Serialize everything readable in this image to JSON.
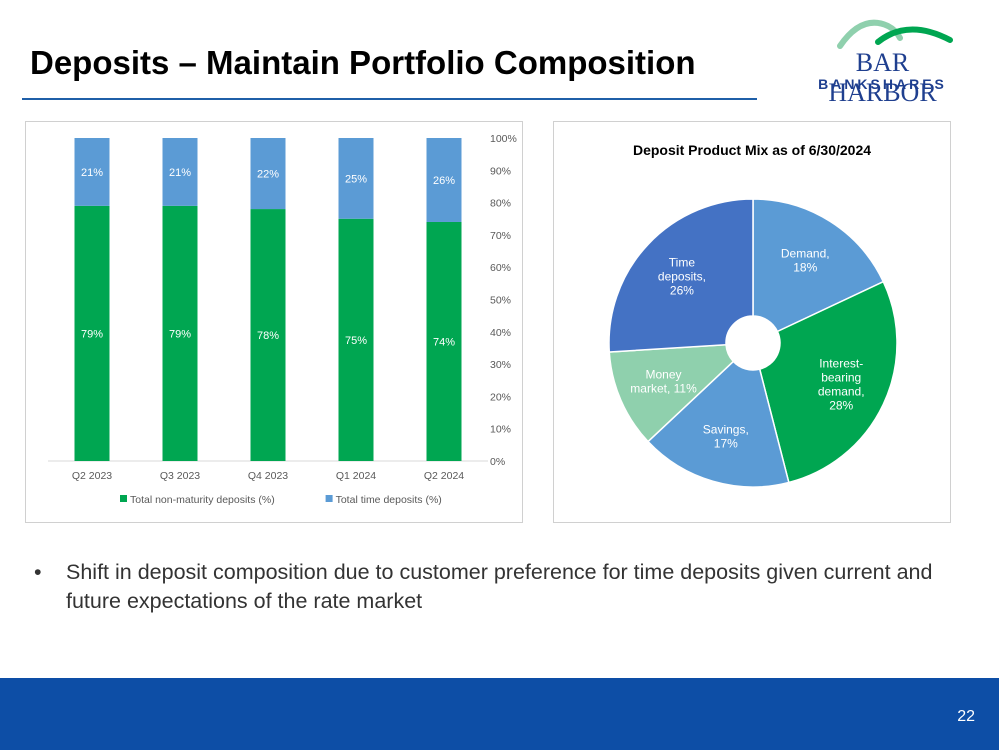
{
  "title": "Deposits – Maintain Portfolio Composition",
  "logo": {
    "line1": "BAR HARBOR",
    "line2": "BANKSHARES"
  },
  "bullet": "Shift in deposit composition due to customer preference for time deposits given current and future expectations of the rate market",
  "page_number": "22",
  "colors": {
    "green": "#00a651",
    "light_blue": "#5b9bd5",
    "mid_blue": "#4472c4",
    "mint": "#8fd0ad",
    "footer": "#0d4ea6"
  },
  "chart_data": [
    {
      "type": "bar",
      "stacked": true,
      "categories": [
        "Q2 2023",
        "Q3 2023",
        "Q4 2023",
        "Q1 2024",
        "Q2 2024"
      ],
      "series": [
        {
          "name": "Total non-maturity deposits (%)",
          "values": [
            79,
            79,
            78,
            75,
            74
          ],
          "labels": [
            "79%",
            "79%",
            "78%",
            "75%",
            "74%"
          ],
          "color": "#00a651"
        },
        {
          "name": "Total time deposits (%)",
          "values": [
            21,
            21,
            22,
            25,
            26
          ],
          "labels": [
            "21%",
            "21%",
            "22%",
            "25%",
            "26%"
          ],
          "color": "#5b9bd5"
        }
      ],
      "y_axis_side": "right",
      "yticks": [
        "0%",
        "10%",
        "20%",
        "30%",
        "40%",
        "50%",
        "60%",
        "70%",
        "80%",
        "90%",
        "100%"
      ],
      "ylim": [
        0,
        100
      ],
      "grid": false,
      "legend": "bottom"
    },
    {
      "type": "pie",
      "donut": true,
      "title": "Deposit Product Mix as of 6/30/2024",
      "slices": [
        {
          "label": [
            "Demand,",
            "18%"
          ],
          "value": 18,
          "color": "#5b9bd5"
        },
        {
          "label": [
            "Interest-",
            "bearing",
            "demand,",
            "28%"
          ],
          "value": 28,
          "color": "#00a651"
        },
        {
          "label": [
            "Savings,",
            "17%"
          ],
          "value": 17,
          "color": "#5b9bd5"
        },
        {
          "label": [
            "Money",
            "market, 11%"
          ],
          "value": 11,
          "color": "#8fd0ad"
        },
        {
          "label": [
            "Time",
            "deposits,",
            "26%"
          ],
          "value": 26,
          "color": "#4472c4"
        }
      ]
    }
  ]
}
